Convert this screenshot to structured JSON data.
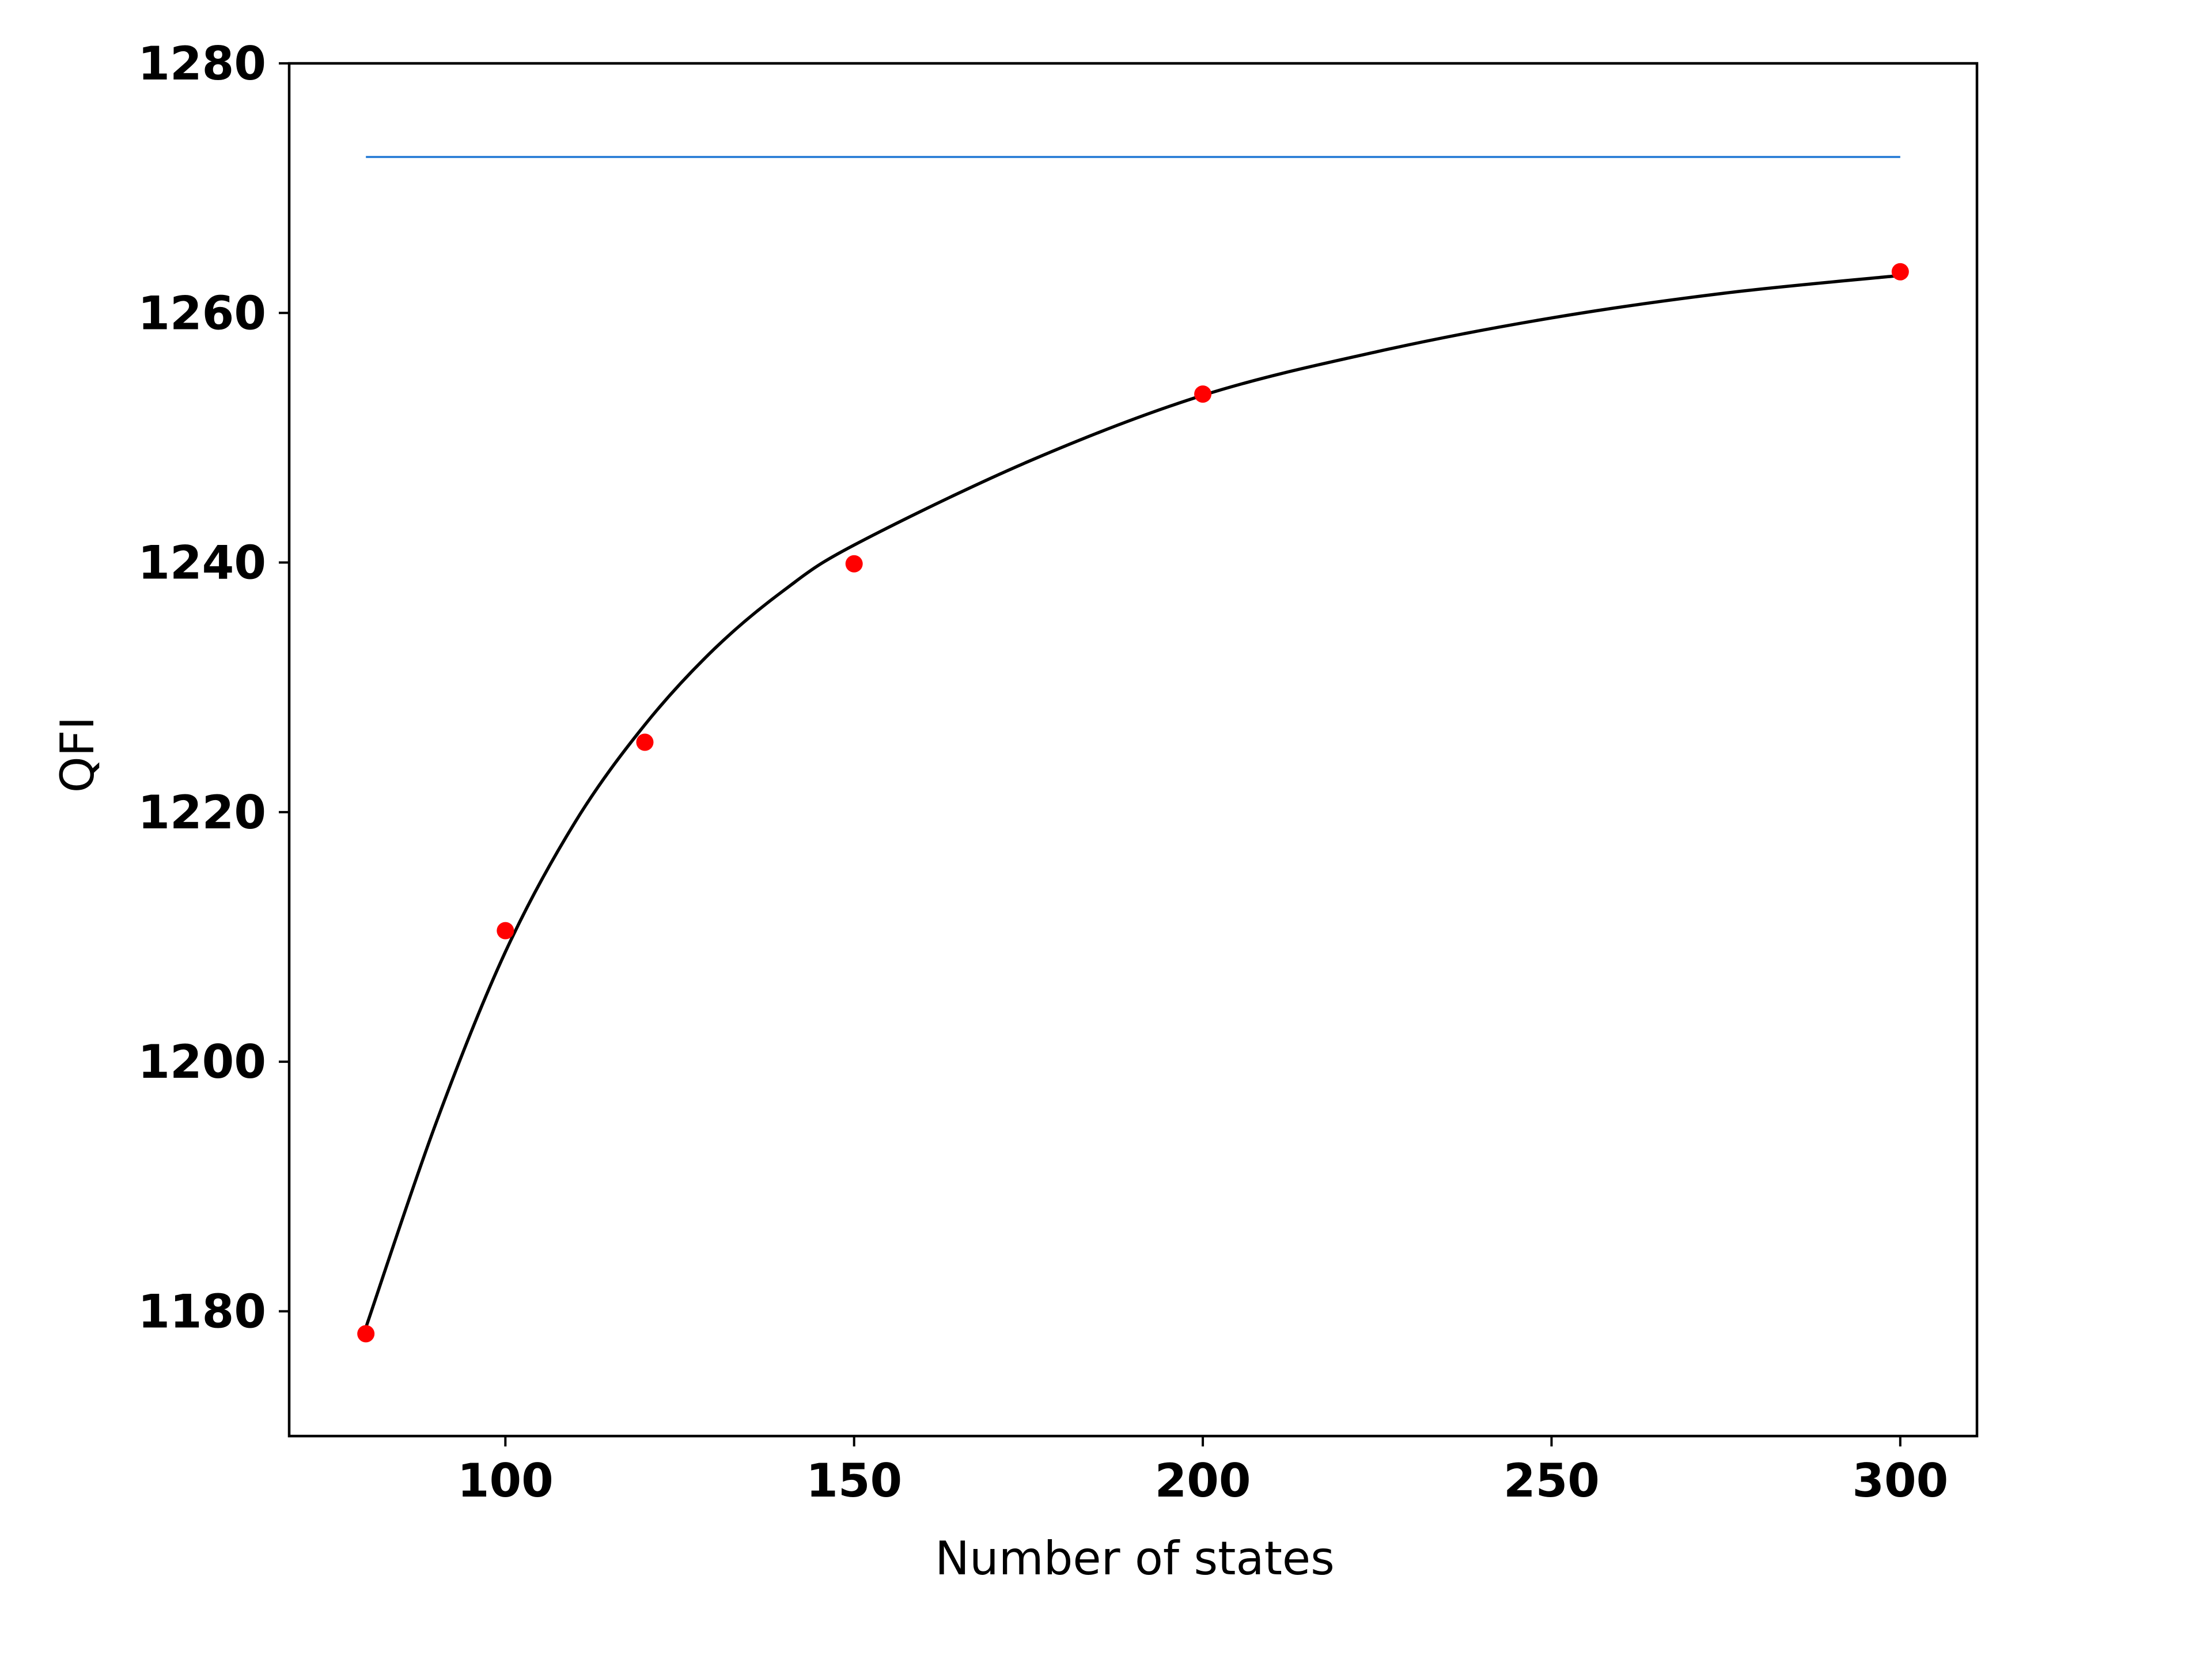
{
  "chart_data": {
    "type": "scatter",
    "xlabel": "Number of states",
    "ylabel": "QFI",
    "xlim": [
      69,
      311
    ],
    "ylim": [
      1170,
      1280
    ],
    "xticks": [
      100,
      150,
      200,
      250,
      300
    ],
    "yticks": [
      1180,
      1200,
      1220,
      1240,
      1260,
      1280
    ],
    "grid": false,
    "legend": "none",
    "series": [
      {
        "kind": "scatter",
        "color": "#ff0000",
        "x": [
          80,
          100,
          120,
          150,
          200,
          300
        ],
        "y": [
          1178.2,
          1210.5,
          1225.6,
          1239.9,
          1253.5,
          1263.3
        ]
      },
      {
        "kind": "line",
        "color": "#000000",
        "x": [
          80,
          90,
          100,
          110,
          120,
          130,
          140,
          150,
          175,
          200,
          225,
          250,
          275,
          300
        ],
        "y": [
          1178.7,
          1195.0,
          1208.8,
          1219.2,
          1227.0,
          1233.1,
          1237.8,
          1241.4,
          1248.1,
          1253.4,
          1256.9,
          1259.6,
          1261.6,
          1263.0
        ]
      },
      {
        "kind": "line",
        "color": "#1f77d4",
        "x": [
          80,
          300
        ],
        "y": [
          1272.5,
          1272.5
        ]
      }
    ]
  }
}
